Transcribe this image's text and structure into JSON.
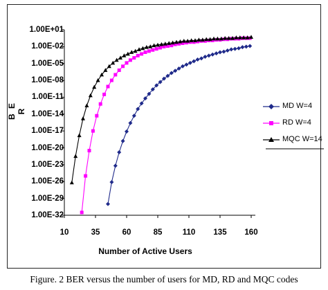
{
  "chart_data": {
    "type": "line",
    "title": "",
    "xlabel": "Number of Active Users",
    "ylabel": "B E R",
    "y_scale": "log",
    "xlim": [
      10,
      160
    ],
    "ylim_exponent": [
      -32,
      1
    ],
    "x_ticks": [
      "10",
      "35",
      "60",
      "85",
      "110",
      "135",
      "160"
    ],
    "y_ticks": [
      "1.00E+01",
      "1.00E-02",
      "1.00E-05",
      "1.00E-08",
      "1.00E-11",
      "1.00E-14",
      "1.00E-17",
      "1.00E-20",
      "1.00E-23",
      "1.00E-26",
      "1.00E-29",
      "1.00E-32"
    ],
    "grid": false,
    "legend_position": "right",
    "series": [
      {
        "name": "MD W=4",
        "color": "#1f2a8a",
        "marker": "diamond",
        "x": [
          45,
          48,
          51,
          54,
          57,
          60,
          63,
          66,
          69,
          72,
          75,
          78,
          81,
          84,
          87,
          90,
          93,
          96,
          99,
          102,
          105,
          108,
          111,
          114,
          117,
          120,
          123,
          126,
          129,
          132,
          135,
          138,
          141,
          144,
          147,
          150,
          153,
          156,
          159
        ],
        "y_exponent": [
          -30.0,
          -26.1,
          -23.2,
          -20.8,
          -18.8,
          -17.1,
          -15.6,
          -14.3,
          -13.1,
          -12.1,
          -11.2,
          -10.4,
          -9.6,
          -8.9,
          -8.3,
          -7.7,
          -7.2,
          -6.7,
          -6.3,
          -5.9,
          -5.5,
          -5.2,
          -4.9,
          -4.6,
          -4.3,
          -4.1,
          -3.8,
          -3.6,
          -3.4,
          -3.2,
          -3.0,
          -2.9,
          -2.7,
          -2.5,
          -2.4,
          -2.3,
          -2.1,
          -2.0,
          -1.9
        ]
      },
      {
        "name": "RD W=4",
        "color": "#ff00ff",
        "marker": "square",
        "x": [
          24,
          27,
          30,
          33,
          36,
          39,
          42,
          45,
          48,
          51,
          54,
          57,
          60,
          63,
          66,
          69,
          72,
          75,
          78,
          81,
          84,
          87,
          90,
          93,
          96,
          99,
          102,
          105,
          108,
          111,
          114,
          117,
          120,
          123,
          126,
          129,
          132,
          135,
          138,
          141,
          144,
          147,
          150,
          153,
          156,
          159
        ],
        "y_exponent": [
          -31.5,
          -25.0,
          -20.5,
          -17.0,
          -14.3,
          -12.2,
          -10.5,
          -9.1,
          -8.0,
          -7.0,
          -6.2,
          -5.5,
          -4.9,
          -4.4,
          -4.0,
          -3.6,
          -3.3,
          -3.0,
          -2.8,
          -2.6,
          -2.4,
          -2.2,
          -2.0,
          -1.9,
          -1.8,
          -1.6,
          -1.5,
          -1.4,
          -1.3,
          -1.2,
          -1.2,
          -1.1,
          -1.0,
          -1.0,
          -0.9,
          -0.9,
          -0.8,
          -0.8,
          -0.7,
          -0.7,
          -0.6,
          -0.6,
          -0.6,
          -0.5,
          -0.5,
          -0.5
        ]
      },
      {
        "name": "MQC W=14",
        "color": "#000000",
        "marker": "triangle",
        "x": [
          16,
          19,
          22,
          25,
          28,
          31,
          34,
          37,
          40,
          43,
          46,
          49,
          52,
          55,
          58,
          61,
          64,
          67,
          70,
          73,
          76,
          79,
          82,
          85,
          88,
          91,
          94,
          97,
          100,
          103,
          106,
          109,
          112,
          115,
          118,
          121,
          124,
          127,
          130,
          133,
          136,
          139,
          142,
          145,
          148,
          151,
          154,
          157,
          160
        ],
        "y_exponent": [
          -26.2,
          -21.5,
          -17.8,
          -14.8,
          -12.5,
          -10.7,
          -9.2,
          -8.0,
          -7.0,
          -6.2,
          -5.5,
          -4.9,
          -4.4,
          -4.0,
          -3.6,
          -3.3,
          -3.0,
          -2.8,
          -2.5,
          -2.3,
          -2.1,
          -2.0,
          -1.8,
          -1.7,
          -1.6,
          -1.5,
          -1.4,
          -1.3,
          -1.2,
          -1.1,
          -1.0,
          -1.0,
          -0.9,
          -0.9,
          -0.8,
          -0.8,
          -0.7,
          -0.7,
          -0.6,
          -0.6,
          -0.6,
          -0.5,
          -0.5,
          -0.5,
          -0.4,
          -0.4,
          -0.4,
          -0.4,
          -0.3
        ]
      }
    ]
  },
  "caption": "Figure. 2 BER versus the number of users for MD, RD and MQC codes"
}
